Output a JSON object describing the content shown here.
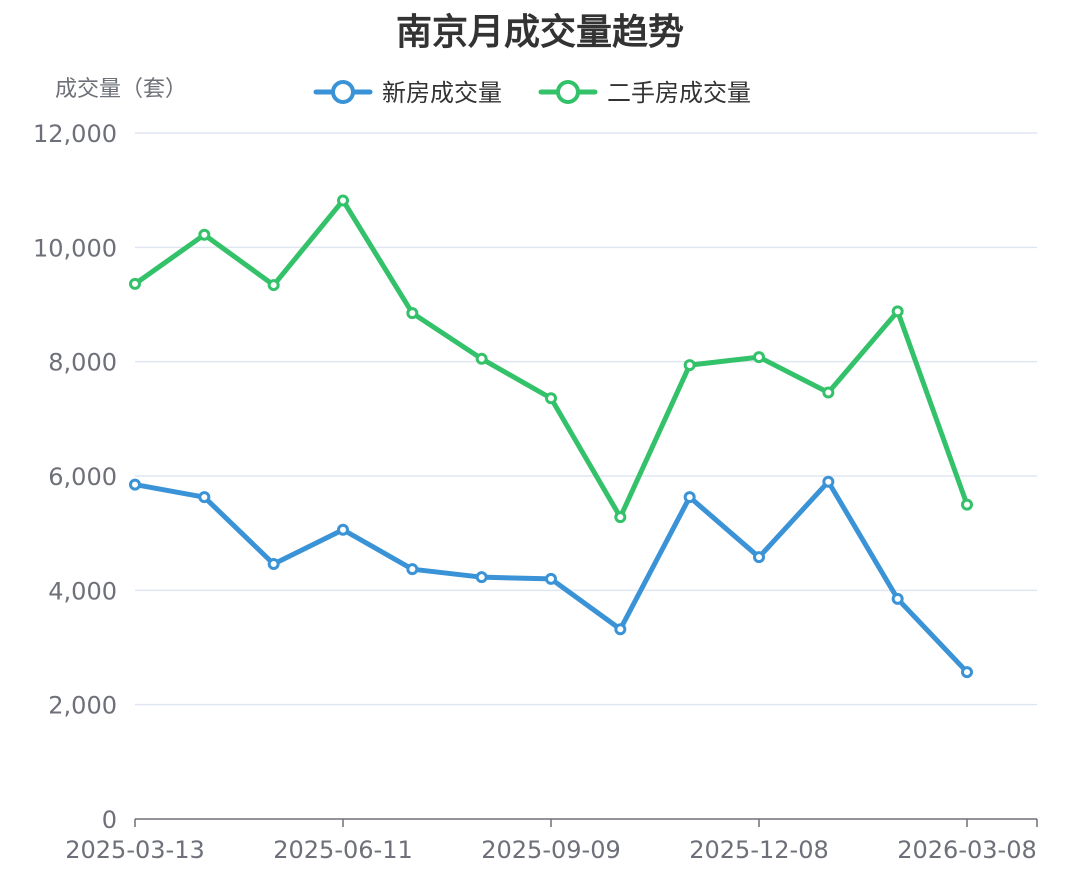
{
  "chart_data": {
    "type": "line",
    "title": "南京月成交量趋势",
    "ylabel": "成交量（套）",
    "xlabel": "",
    "ylim": [
      0,
      12000
    ],
    "y_ticks": [
      "0",
      "2,000",
      "4,000",
      "6,000",
      "8,000",
      "10,000",
      "12,000"
    ],
    "x_ticks": [
      "2025-03-13",
      "2025-06-11",
      "2025-09-09",
      "2025-12-08",
      "2026-03-08"
    ],
    "x": [
      "2025-03-13",
      "2025-04-12",
      "2025-05-12",
      "2025-06-11",
      "2025-07-11",
      "2025-08-10",
      "2025-09-09",
      "2025-10-09",
      "2025-11-08",
      "2025-12-08",
      "2026-01-07",
      "2026-02-06",
      "2026-03-08"
    ],
    "grid": true,
    "legend_position": "top-center",
    "series": [
      {
        "name": "新房成交量",
        "color": "#3a93d6",
        "values": [
          5850,
          5630,
          4460,
          5060,
          4370,
          4230,
          4200,
          3320,
          5630,
          4580,
          5900,
          3850,
          2570
        ]
      },
      {
        "name": "二手房成交量",
        "color": "#33c16a",
        "values": [
          9360,
          10220,
          9340,
          10820,
          8850,
          8050,
          7360,
          5280,
          7940,
          8080,
          7460,
          8880,
          5500
        ]
      }
    ]
  }
}
